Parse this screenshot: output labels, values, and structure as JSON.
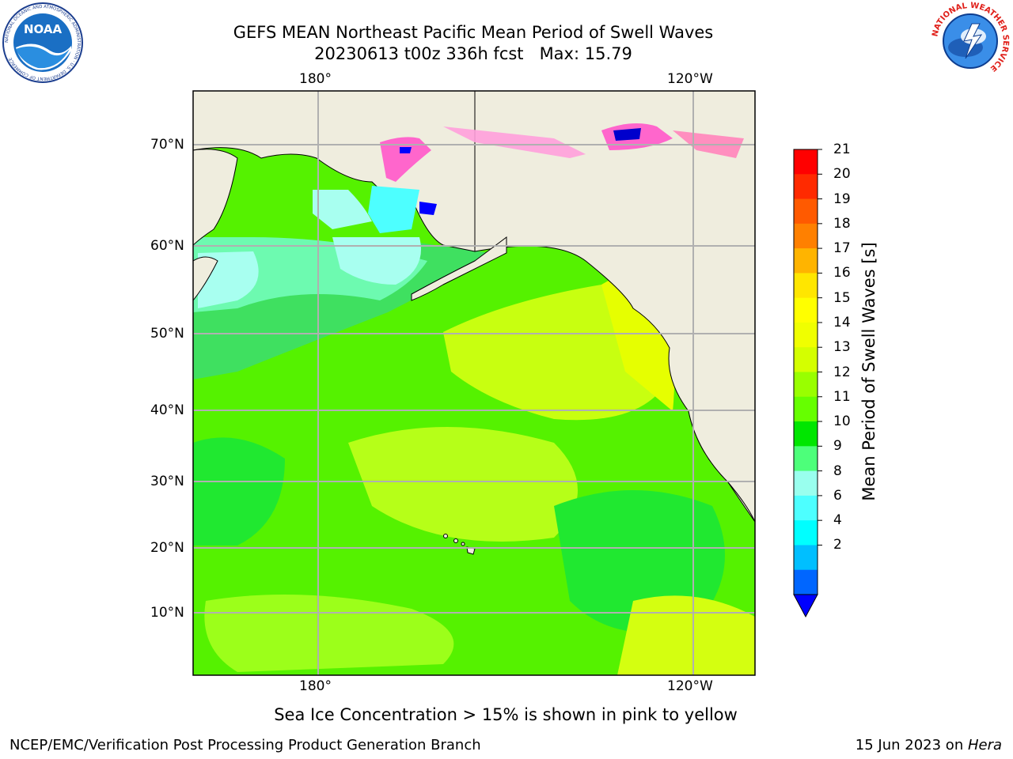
{
  "header": {
    "title_line1": "GEFS MEAN Northeast Pacific Mean Period of Swell Waves",
    "title_line2": "20230613 t00z 336h fcst   Max: 15.79"
  },
  "logos": {
    "noara_left": {
      "text": "NOAA",
      "ring_text": "NATIONAL OCEANIC AND ATMOSPHERIC ADMINISTRATION · U.S. DEPARTMENT OF COMMERCE"
    },
    "nws_right": {
      "ring_text": "NATIONAL WEATHER SERVICE"
    }
  },
  "map": {
    "lon_labels_top": [
      "180°",
      "120°W"
    ],
    "lon_labels_bottom": [
      "180°",
      "120°W"
    ],
    "lat_labels": [
      "70°N",
      "60°N",
      "50°N",
      "40°N",
      "30°N",
      "20°N",
      "10°N"
    ],
    "colors": {
      "land": "#efedde",
      "grid": "#b0b0b0",
      "sea_ice_pink": "#ff66cc"
    }
  },
  "colorbar": {
    "label": "Mean Period of Swell Waves [s]",
    "ticks": [
      "21",
      "20",
      "19",
      "18",
      "17",
      "16",
      "15",
      "14",
      "13",
      "12",
      "11",
      "10",
      "9",
      "8",
      "6",
      "4",
      "2"
    ],
    "colors_top_to_bottom": [
      "#ff0000",
      "#ff2a00",
      "#ff5a00",
      "#ff8000",
      "#ffb400",
      "#ffe600",
      "#ffff00",
      "#f0ff00",
      "#d4ff00",
      "#99ff00",
      "#66ff00",
      "#00e600",
      "#4dff7a",
      "#99ffee",
      "#4dffff",
      "#00ffff",
      "#00bfff",
      "#0066ff"
    ],
    "extend_color": "#0000ff"
  },
  "caption": "Sea Ice Concentration > 15% is shown in pink to yellow",
  "footer": {
    "left": "NCEP/EMC/Verification Post Processing Product Generation Branch",
    "right_prefix": "15 Jun 2023 on ",
    "right_host": "Hera"
  }
}
